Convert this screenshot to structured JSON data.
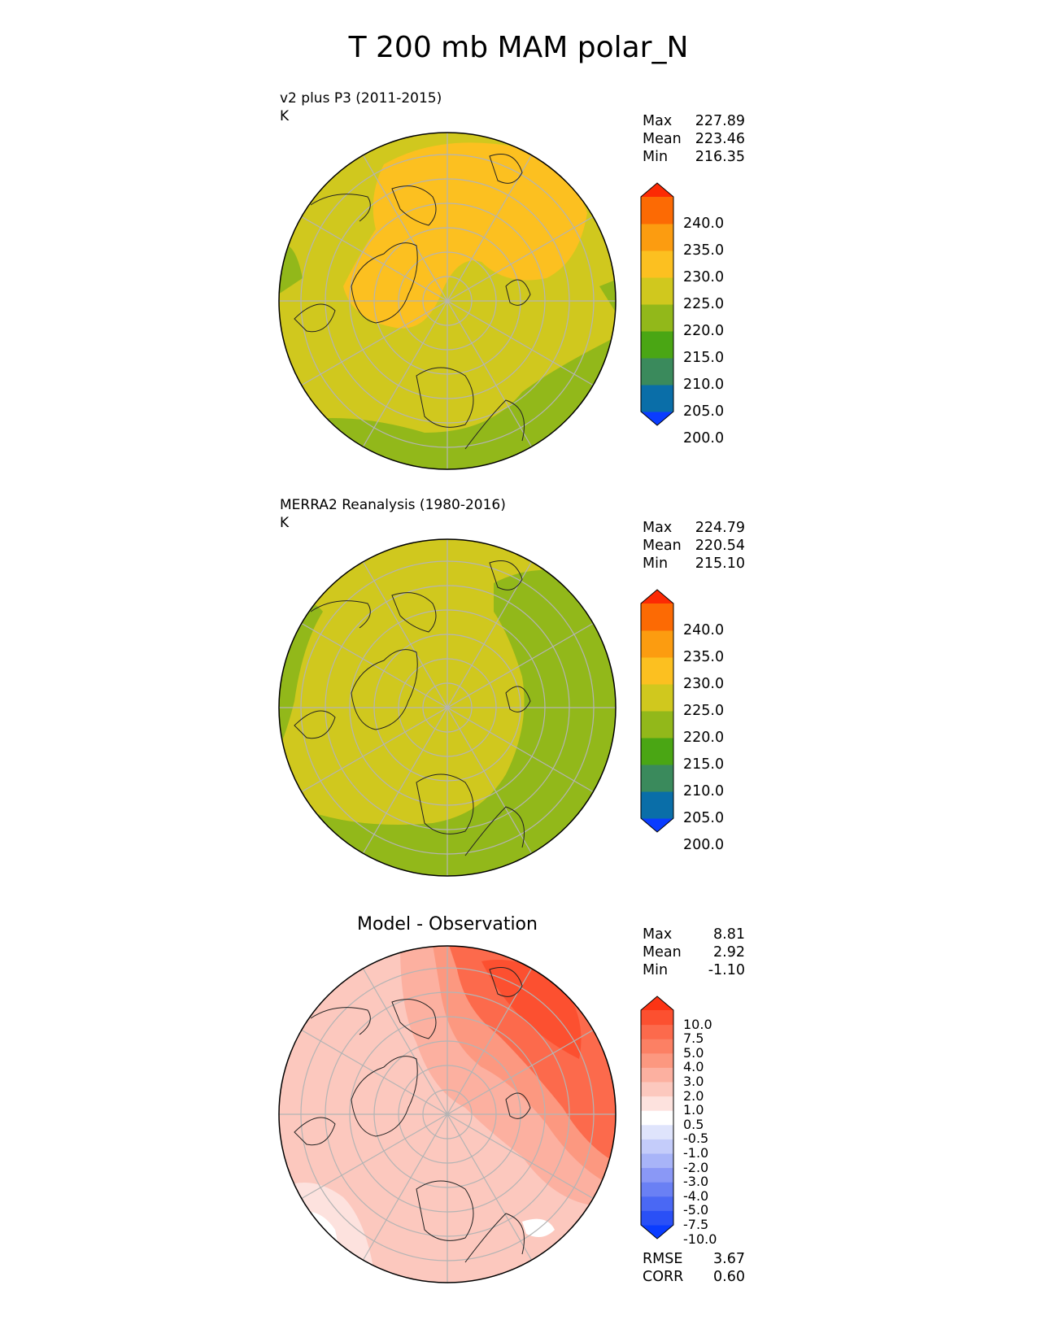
{
  "title": "T 200 mb MAM polar_N",
  "panels": [
    {
      "name": "v2 plus P3 (2011-2015)",
      "units": "K",
      "stats": {
        "max_label": "Max",
        "max": "227.89",
        "mean_label": "Mean",
        "mean": "223.46",
        "min_label": "Min",
        "min": "216.35"
      },
      "colorbar": {
        "colors": [
          "#0a3cff",
          "#0a6ea8",
          "#3a8a5c",
          "#4aa614",
          "#92b81a",
          "#d0c81e",
          "#fcc020",
          "#fc9c10",
          "#fc6a04",
          "#fc2a04"
        ],
        "labels": [
          "240.0",
          "235.0",
          "230.0",
          "225.0",
          "220.0",
          "215.0",
          "210.0",
          "205.0",
          "200.0"
        ]
      }
    },
    {
      "name": "MERRA2 Reanalysis (1980-2016)",
      "units": "K",
      "stats": {
        "max_label": "Max",
        "max": "224.79",
        "mean_label": "Mean",
        "mean": "220.54",
        "min_label": "Min",
        "min": "215.10"
      },
      "colorbar": {
        "colors": [
          "#0a3cff",
          "#0a6ea8",
          "#3a8a5c",
          "#4aa614",
          "#92b81a",
          "#d0c81e",
          "#fcc020",
          "#fc9c10",
          "#fc6a04",
          "#fc2a04"
        ],
        "labels": [
          "240.0",
          "235.0",
          "230.0",
          "225.0",
          "220.0",
          "215.0",
          "210.0",
          "205.0",
          "200.0"
        ]
      }
    },
    {
      "name": "Model - Observation",
      "stats": {
        "max_label": "Max",
        "max": "8.81",
        "mean_label": "Mean",
        "mean": "2.92",
        "min_label": "Min",
        "min": "-1.10"
      },
      "colorbar": {
        "colors": [
          "#0a3cff",
          "#2a50f6",
          "#4a68f4",
          "#6a80f4",
          "#8a98f6",
          "#a8b4f8",
          "#c4ccfa",
          "#dfe4fc",
          "#ffffff",
          "#fde2de",
          "#fcc8be",
          "#fcb0a0",
          "#fc9880",
          "#fc8064",
          "#fc6a4c",
          "#fc5030",
          "#fc3414"
        ],
        "labels": [
          "10.0",
          "7.5",
          "5.0",
          "4.0",
          "3.0",
          "2.0",
          "1.0",
          "0.5",
          "-0.5",
          "-1.0",
          "-2.0",
          "-3.0",
          "-4.0",
          "-5.0",
          "-7.5",
          "-10.0"
        ]
      },
      "extra_stats": {
        "rmse_label": "RMSE",
        "rmse": "3.67",
        "corr_label": "CORR",
        "corr": "0.60"
      }
    }
  ]
}
